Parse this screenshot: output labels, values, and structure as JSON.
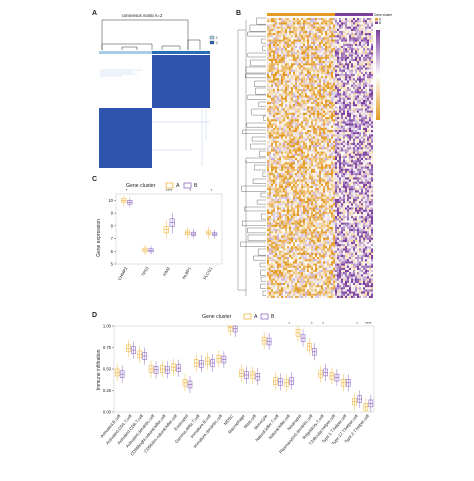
{
  "panels": {
    "a": {
      "letter": "A",
      "title": "consensus matrix k=2",
      "legend_labels": [
        "1",
        "2"
      ],
      "colors": {
        "dark": "#2f54ad",
        "light": "#ffffff",
        "c1": "#a9cde6",
        "c2": "#2a6db5"
      }
    },
    "b": {
      "letter": "B",
      "legend_title": "Gene cluster",
      "legend_labels": [
        "A",
        "B"
      ],
      "colors": {
        "purple": "#7b3f9e",
        "orange": "#e39b26",
        "white": "#ffffff"
      }
    },
    "c": {
      "letter": "C",
      "legend_title": "Gene cluster",
      "legend_labels": [
        "A",
        "B"
      ]
    },
    "d": {
      "letter": "D",
      "legend_title": "Gene cluster",
      "legend_labels": [
        "A",
        "B"
      ]
    }
  },
  "chart_data": [
    {
      "type": "box",
      "panel": "C",
      "ylabel": "Gene expression",
      "ylim": [
        5,
        10.5
      ],
      "yticks": [
        5,
        6,
        7,
        8,
        9,
        10
      ],
      "categories": [
        "CHMP2",
        "TP53",
        "AIM2",
        "HLBP1",
        "PLCG1"
      ],
      "significance": [
        "*",
        "",
        "****",
        "*",
        "*"
      ],
      "series": [
        {
          "name": "A",
          "color": "#f0b845",
          "boxes": [
            {
              "q1": 9.85,
              "median": 10.0,
              "q3": 10.15,
              "lo": 9.55,
              "hi": 10.35
            },
            {
              "q1": 5.95,
              "median": 6.1,
              "q3": 6.25,
              "lo": 5.7,
              "hi": 6.5
            },
            {
              "q1": 7.45,
              "median": 7.7,
              "q3": 7.95,
              "lo": 7.0,
              "hi": 8.4
            },
            {
              "q1": 7.3,
              "median": 7.45,
              "q3": 7.6,
              "lo": 7.0,
              "hi": 7.9
            },
            {
              "q1": 7.3,
              "median": 7.45,
              "q3": 7.6,
              "lo": 7.0,
              "hi": 7.9
            }
          ]
        },
        {
          "name": "B",
          "color": "#8f6bc4",
          "boxes": [
            {
              "q1": 9.7,
              "median": 9.85,
              "q3": 10.0,
              "lo": 9.45,
              "hi": 10.2
            },
            {
              "q1": 5.95,
              "median": 6.05,
              "q3": 6.2,
              "lo": 5.75,
              "hi": 6.4
            },
            {
              "q1": 7.95,
              "median": 8.25,
              "q3": 8.55,
              "lo": 7.4,
              "hi": 9.0
            },
            {
              "q1": 7.25,
              "median": 7.35,
              "q3": 7.5,
              "lo": 7.0,
              "hi": 7.75
            },
            {
              "q1": 7.25,
              "median": 7.35,
              "q3": 7.45,
              "lo": 7.0,
              "hi": 7.7
            }
          ]
        }
      ]
    },
    {
      "type": "box",
      "panel": "D",
      "ylabel": "Immune infiltration",
      "ylim": [
        0.0,
        1.0
      ],
      "yticks": [
        "0.00",
        "0.25",
        "0.50",
        "0.75",
        "1.00"
      ],
      "categories": [
        "Activated.B.cell",
        "Activated.CD4.T.cell",
        "Activated.CD8.T.cell",
        "Activated.dendritic.cell",
        "CD56bright.natural.killer.cell",
        "CD56dim.natural.killer.cell",
        "Eosinophil",
        "Gamma.delta.T.cell",
        "Immature.B.cell",
        "Immature.dendritic.cell",
        "MDSC",
        "Macrophage",
        "Mast.cell",
        "Monocyte",
        "Natural.killer.T.cell",
        "Natural.killer.cell",
        "Neutrophil",
        "Plasmacytoid.dendritic.cell",
        "Regulatory.T.cell",
        "T.follicular.helper.cell",
        "Type.1.T.helper.cell",
        "Type.17.T.helper.cell",
        "Type.2.T.helper.cell"
      ],
      "significance": [
        "",
        "",
        "",
        "",
        "",
        "",
        "",
        "",
        "",
        "",
        "",
        "",
        "",
        "",
        "",
        "*",
        "",
        "*",
        "*",
        "",
        "",
        "*",
        "****"
      ],
      "series": [
        {
          "name": "A",
          "medians": [
            0.46,
            0.74,
            0.67,
            0.5,
            0.5,
            0.52,
            0.34,
            0.57,
            0.59,
            0.62,
            0.98,
            0.45,
            0.43,
            0.83,
            0.36,
            0.34,
            0.92,
            0.76,
            0.44,
            0.42,
            0.34,
            0.12,
            0.06
          ]
        },
        {
          "name": "B",
          "medians": [
            0.44,
            0.72,
            0.65,
            0.49,
            0.49,
            0.51,
            0.32,
            0.56,
            0.57,
            0.61,
            0.97,
            0.43,
            0.41,
            0.82,
            0.35,
            0.36,
            0.86,
            0.7,
            0.46,
            0.4,
            0.34,
            0.15,
            0.1
          ]
        }
      ]
    }
  ]
}
